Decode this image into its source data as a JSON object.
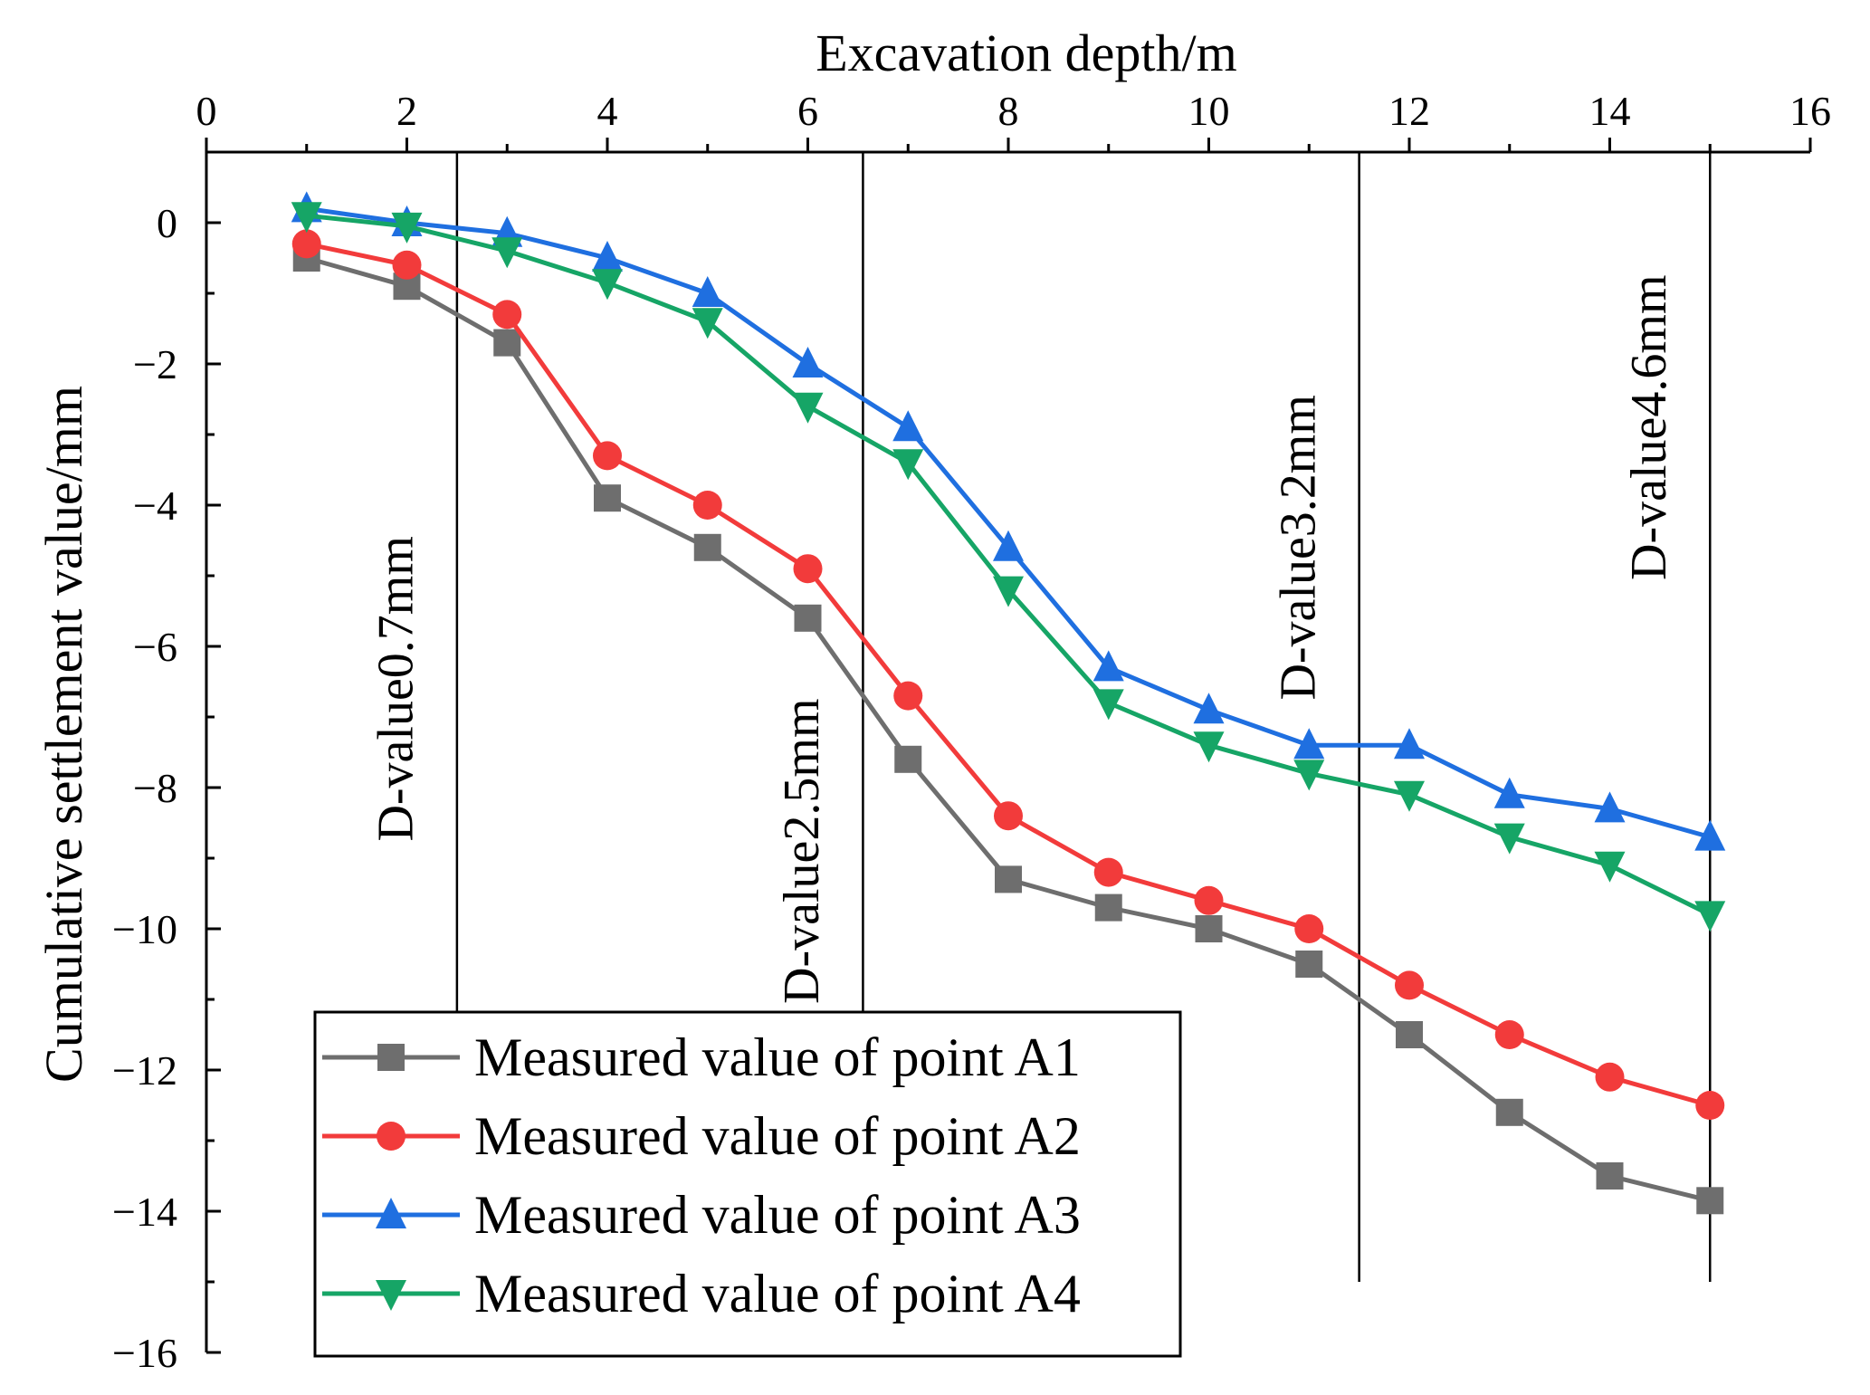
{
  "chart_data": {
    "type": "line",
    "xlabel": "Excavation depth/m",
    "ylabel": "Cumulative settlement value/mm",
    "xlim": [
      0,
      16
    ],
    "ylim": [
      -16,
      1
    ],
    "xticks": [
      0,
      2,
      4,
      6,
      8,
      10,
      12,
      14,
      16
    ],
    "yticks": [
      0,
      -2,
      -4,
      -6,
      -8,
      -10,
      -12,
      -14,
      -16
    ],
    "x_axis_position": "top",
    "legend_position": "bottom-left",
    "x": [
      1,
      2,
      3,
      4,
      5,
      6,
      7,
      8,
      9,
      10,
      11,
      12,
      13,
      14,
      15
    ],
    "series": [
      {
        "name": "Measured value of point A1",
        "color": "#6e6e6e",
        "marker": "square",
        "values": [
          -0.5,
          -0.9,
          -1.7,
          -3.9,
          -4.6,
          -5.6,
          -7.6,
          -9.3,
          -9.7,
          -10.0,
          -10.5,
          -11.5,
          -12.6,
          -13.5,
          -13.85
        ]
      },
      {
        "name": "Measured value of point A2",
        "color": "#f23b3b",
        "marker": "circle",
        "values": [
          -0.3,
          -0.6,
          -1.3,
          -3.3,
          -4.0,
          -4.9,
          -6.7,
          -8.4,
          -9.2,
          -9.6,
          -10.0,
          -10.8,
          -11.5,
          -12.1,
          -12.5
        ]
      },
      {
        "name": "Measured value of point A3",
        "color": "#1f6fe0",
        "marker": "triangle-up",
        "values": [
          0.2,
          0.0,
          -0.15,
          -0.5,
          -1.0,
          -2.0,
          -2.9,
          -4.6,
          -6.3,
          -6.9,
          -7.4,
          -7.4,
          -8.1,
          -8.3,
          -8.7
        ]
      },
      {
        "name": "Measured value of point A4",
        "color": "#16a566",
        "marker": "triangle-down",
        "values": [
          0.1,
          -0.05,
          -0.4,
          -0.85,
          -1.4,
          -2.6,
          -3.4,
          -5.2,
          -6.8,
          -7.4,
          -7.8,
          -8.1,
          -8.7,
          -9.1,
          -9.8
        ]
      }
    ],
    "annotations": [
      {
        "text": "D-value0.7mm",
        "x": 2.5,
        "line_y_from": 1,
        "line_y_to": -11.35,
        "label_anchor_y": -6.6
      },
      {
        "text": "D-value2.5mm",
        "x": 6.55,
        "line_y_from": 1,
        "line_y_to": -11.35,
        "label_anchor_y": -8.9
      },
      {
        "text": "D-value3.2mm",
        "x": 11.5,
        "line_y_from": 1,
        "line_y_to": -15.0,
        "label_anchor_y": -4.6
      },
      {
        "text": "D-value4.6mm",
        "x": 15.0,
        "line_y_from": 1,
        "line_y_to": -15.0,
        "label_anchor_y": -2.9
      }
    ]
  }
}
